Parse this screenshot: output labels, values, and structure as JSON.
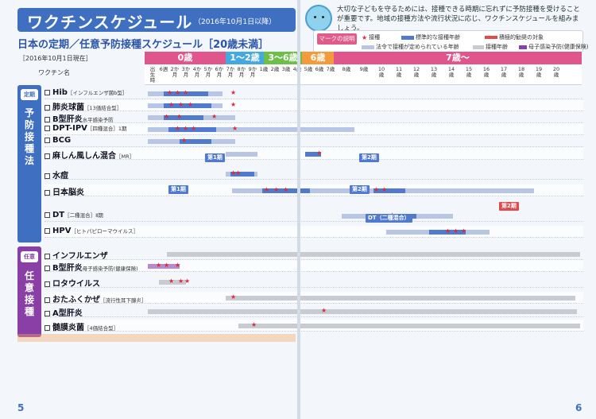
{
  "header": {
    "title": "ワクチンスケジュール",
    "title_date": "（2016年10月1日以降）",
    "subtitle": "日本の定期／任意予防接種スケジュール［20歳未満］",
    "as_of": "［2016年10月1日現在］",
    "intro": "大切な子どもを守るためには、接種できる時期に忘れずに予防接種を受けることが重要です。地域の接種方法や流行状況に応じ、ワクチンスケジュールを組みましょう。"
  },
  "legend": {
    "title": "マークの説明",
    "items": [
      "接種",
      "標準的な接種年齢",
      "積極的勧奨の対象",
      "法令で接種が定められている年齢",
      "接種年齢",
      "母子感染予防(健康保険)"
    ]
  },
  "ages": {
    "band0": "0歳",
    "band1": "1〜2歳",
    "band2": "3〜6歳",
    "band3": "6歳",
    "band4": "7歳〜",
    "ticks_a": [
      "出生時",
      "6週",
      "2か月",
      "3か月",
      "4か月",
      "5か月",
      "6か月",
      "7か月",
      "8か月",
      "9か月",
      "1歳",
      "2歳",
      "3歳",
      "4歳",
      "5歳",
      "6歳",
      "7歳",
      "8歳",
      "9歳",
      "10歳",
      "11歳",
      "12歳",
      "13歳",
      "14歳",
      "15歳",
      "16歳",
      "17歳",
      "18歳",
      "19歳",
      "20歳"
    ]
  },
  "table": {
    "col_head": "ワクチン名",
    "side_a_tag": "定期",
    "side_a_text": "予防接種法",
    "side_b_tag": "任意",
    "side_b_text": "任意接種",
    "rows": [
      {
        "name": "Hib",
        "note": "［インフルエンザ菌b型］"
      },
      {
        "name": "肺炎球菌",
        "note": "［13価結合型］"
      },
      {
        "name": "B型肝炎",
        "note": "水平感染予防"
      },
      {
        "name": "DPT-IPV",
        "note": "［四種混合］1期"
      },
      {
        "name": "BCG",
        "note": ""
      },
      {
        "name": "麻しん風しん混合",
        "note": "［MR］"
      },
      {
        "name": "水痘",
        "note": ""
      },
      {
        "name": "日本脳炎",
        "note": ""
      },
      {
        "name": "DT",
        "note": "［二種混合］Ⅱ期"
      },
      {
        "name": "HPV",
        "note": "［ヒトパピローマウイルス］"
      },
      {
        "name": "インフルエンザ",
        "note": ""
      },
      {
        "name": "B型肝炎",
        "note": "母子感染予防(健康保険)"
      },
      {
        "name": "ロタウイルス",
        "note": ""
      },
      {
        "name": "おたふくかぜ",
        "note": "［流行性耳下腺炎］"
      },
      {
        "name": "A型肝炎",
        "note": ""
      },
      {
        "name": "髄膜炎菌",
        "note": "［4価結合型］"
      }
    ]
  },
  "stages": {
    "first": "第1期",
    "second": "第2期",
    "dt": "DT（二種混合）",
    "je2": "第2期"
  },
  "page_left": "5",
  "page_right": "6",
  "colors": {
    "blue": "#3f6fc0",
    "purple": "#8a3fa6",
    "green": "#6cc04a",
    "orange": "#f39a3c",
    "red": "#e04a4a"
  }
}
